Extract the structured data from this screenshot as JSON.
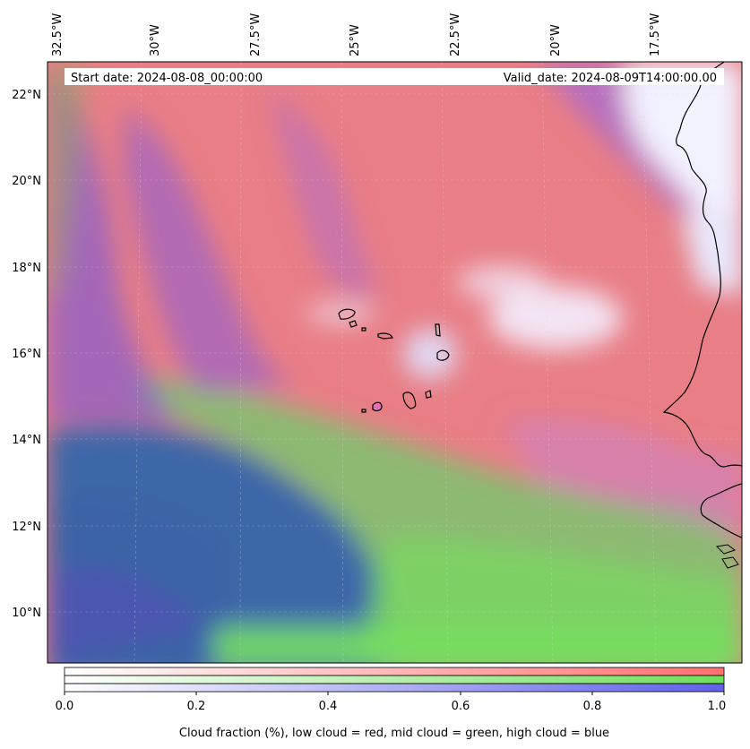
{
  "map": {
    "start_date_text": "Start date: 2024-08-08_00:00:00",
    "valid_date_text": "Valid_date: 2024-08-09T14:00:00.00",
    "lon_labels": [
      "32.5°W",
      "30°W",
      "27.5°W",
      "25°W",
      "22.5°W",
      "20°W",
      "17.5°W"
    ],
    "lat_labels": [
      "22°N",
      "20°N",
      "18°N",
      "16°N",
      "14°N",
      "12°N",
      "10°N"
    ],
    "colors": {
      "low_cloud": "#ff7878",
      "mid_cloud": "#78e060",
      "high_cloud": "#6a6ae8",
      "clear_ocean": "#3f6aa8",
      "coastline": "#000000"
    }
  },
  "colorbar": {
    "ticks": [
      "0.0",
      "0.2",
      "0.4",
      "0.6",
      "0.8",
      "1.0"
    ],
    "label": "Cloud fraction (%), low cloud = red, mid cloud = green, high cloud = blue",
    "rows": [
      "low cloud",
      "mid cloud",
      "high cloud"
    ]
  }
}
